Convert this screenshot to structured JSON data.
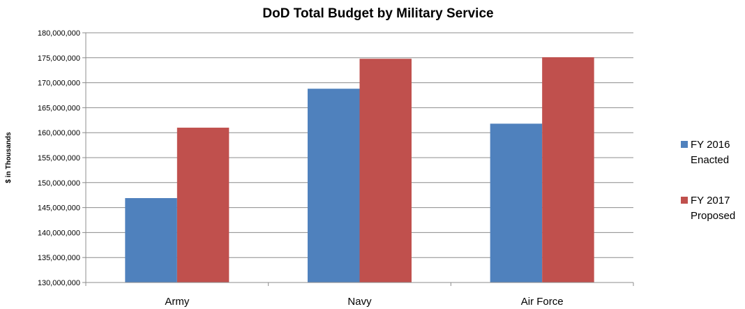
{
  "chart_data": {
    "type": "bar",
    "title": "DoD Total Budget by Military Service",
    "xlabel": "",
    "ylabel": "$ in Thousands",
    "categories": [
      "Army",
      "Navy",
      "Air Force"
    ],
    "series": [
      {
        "name": "FY 2016 Enacted",
        "color": "#4F81BD",
        "values": [
          146900000,
          168800000,
          161800000
        ]
      },
      {
        "name": "FY 2017 Proposed",
        "color": "#C0504D",
        "values": [
          161000000,
          174800000,
          175100000
        ]
      }
    ],
    "ylim": [
      130000000,
      180000000
    ],
    "yticks": [
      "130,000,000",
      "135,000,000",
      "140,000,000",
      "145,000,000",
      "150,000,000",
      "155,000,000",
      "160,000,000",
      "165,000,000",
      "170,000,000",
      "175,000,000",
      "180,000,000"
    ],
    "grid": true,
    "legend_position": "right",
    "legend": [
      {
        "line1": "FY 2016",
        "line2": "Enacted"
      },
      {
        "line1": "FY 2017",
        "line2": "Proposed"
      }
    ]
  }
}
